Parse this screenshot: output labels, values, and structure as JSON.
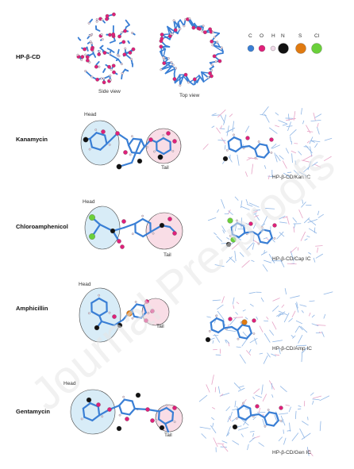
{
  "rows": [
    {
      "label": "HP-β-CD",
      "side": "Side view",
      "top": "Top view"
    },
    {
      "label": "Kanamycin",
      "head": "Head",
      "tail": "Tail",
      "ic": "HP-β-CD/Kan IC"
    },
    {
      "label": "Chloroamphenicol",
      "head": "Head",
      "tail": "Tail",
      "ic": "HP-β-CD/Cap IC"
    },
    {
      "label": "Amphicillin",
      "head": "Head",
      "tail": "Tail",
      "ic": "HP-β-CD/Amp IC"
    },
    {
      "label": "Gentamycin",
      "head": "Head",
      "tail": "Tail",
      "ic": "HP-β-CD/Gen IC"
    }
  ],
  "legend": [
    {
      "symbol": "C",
      "color": "#3a7fd5"
    },
    {
      "symbol": "O",
      "color": "#e0207a"
    },
    {
      "symbol": "H",
      "color": "#f0d8e8"
    },
    {
      "symbol": "N",
      "color": "#111111"
    },
    {
      "symbol": "S",
      "color": "#e07a10"
    },
    {
      "symbol": "Cl",
      "color": "#6ad03a"
    }
  ],
  "watermark": "Journal Pre-proofs",
  "colors": {
    "head_fill": "#d8ecf7",
    "tail_fill": "#f9dde6",
    "bond": "#3a7fd5"
  }
}
